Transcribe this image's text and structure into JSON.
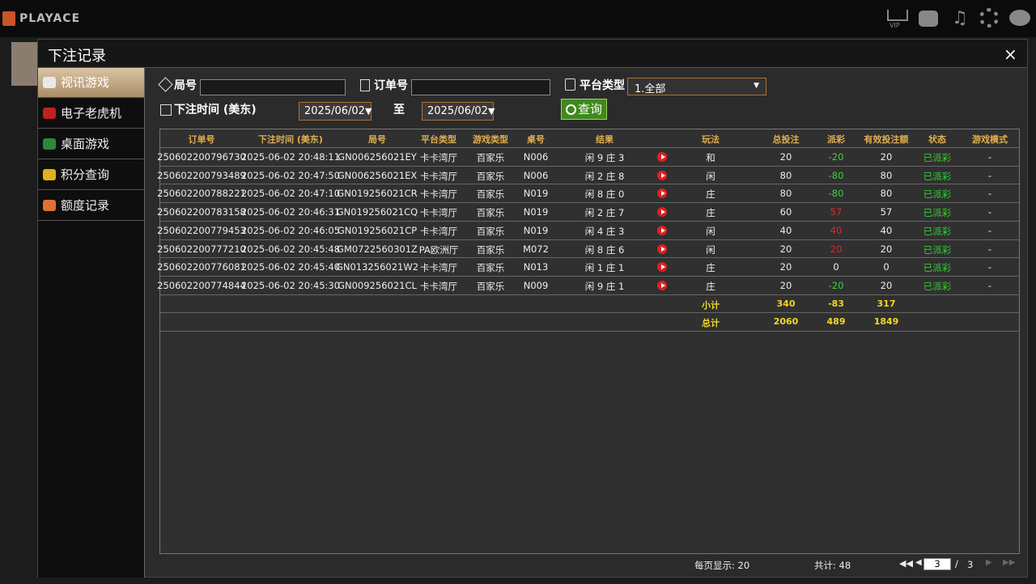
{
  "header": {
    "logo": "PLAYACE",
    "vip": "VIP"
  },
  "modal": {
    "title": "下注记录",
    "close": "×"
  },
  "sidebar": [
    "视讯游戏",
    "电子老虎机",
    "桌面游戏",
    "积分查询",
    "额度记录"
  ],
  "filters": {
    "round_label": "局号",
    "order_label": "订单号",
    "platform_label": "平台类型",
    "platform_value": "1.全部",
    "time_label": "下注时间 (美东)",
    "date_from": "2025/06/02",
    "to": "至",
    "date_to": "2025/06/02",
    "query": "查询"
  },
  "table": {
    "columns": [
      "订单号",
      "下注时间 (美东)",
      "局号",
      "平台类型",
      "游戏类型",
      "桌号",
      "结果",
      "玩法",
      "总投注",
      "派彩",
      "有效投注额",
      "状态",
      "游戏模式"
    ],
    "rows": [
      [
        "250602200796730",
        "2025-06-02 20:48:11",
        "GN006256021EY",
        "卡卡湾厅",
        "百家乐",
        "N006",
        "闲 9 庄 3",
        "和",
        20,
        -20,
        20,
        "已派彩",
        "-"
      ],
      [
        "250602200793489",
        "2025-06-02 20:47:50",
        "GN006256021EX",
        "卡卡湾厅",
        "百家乐",
        "N006",
        "闲 2 庄 8",
        "闲",
        80,
        -80,
        80,
        "已派彩",
        "-"
      ],
      [
        "250602200788221",
        "2025-06-02 20:47:10",
        "GN019256021CR",
        "卡卡湾厅",
        "百家乐",
        "N019",
        "闲 8 庄 0",
        "庄",
        80,
        -80,
        80,
        "已派彩",
        "-"
      ],
      [
        "250602200783158",
        "2025-06-02 20:46:31",
        "GN019256021CQ",
        "卡卡湾厅",
        "百家乐",
        "N019",
        "闲 2 庄 7",
        "庄",
        60,
        57,
        57,
        "已派彩",
        "-"
      ],
      [
        "250602200779453",
        "2025-06-02 20:46:05",
        "GN019256021CP",
        "卡卡湾厅",
        "百家乐",
        "N019",
        "闲 4 庄 3",
        "闲",
        40,
        40,
        40,
        "已派彩",
        "-"
      ],
      [
        "250602200777210",
        "2025-06-02 20:45:48",
        "GM0722560301Z",
        "PA欧洲厅",
        "百家乐",
        "M072",
        "闲 8 庄 6",
        "闲",
        20,
        20,
        20,
        "已派彩",
        "-"
      ],
      [
        "250602200776081",
        "2025-06-02 20:45:40",
        "GN013256021W2",
        "卡卡湾厅",
        "百家乐",
        "N013",
        "闲 1 庄 1",
        "庄",
        20,
        0,
        0,
        "已派彩",
        "-"
      ],
      [
        "250602200774844",
        "2025-06-02 20:45:30",
        "GN009256021CL",
        "卡卡湾厅",
        "百家乐",
        "N009",
        "闲 9 庄 1",
        "庄",
        20,
        -20,
        20,
        "已派彩",
        "-"
      ]
    ],
    "subtotal": {
      "label": "小计",
      "values": [
        340,
        -83,
        317
      ]
    },
    "total": {
      "label": "总计",
      "values": [
        2060,
        489,
        1849
      ]
    }
  },
  "footer": {
    "per_page": "每页显示: 20",
    "total": "共计: 48",
    "page": "3",
    "sep": "/",
    "pages": "3"
  }
}
